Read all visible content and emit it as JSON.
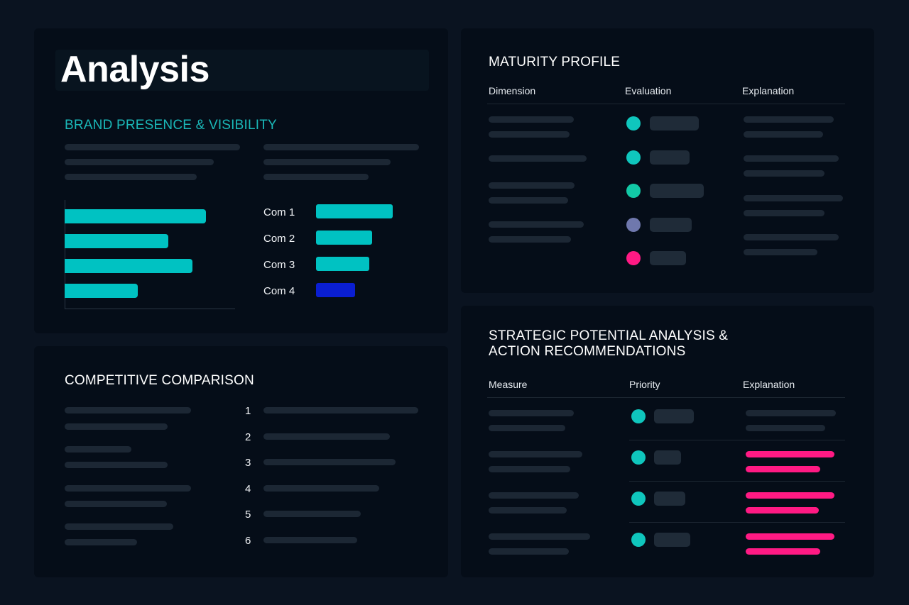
{
  "page": {
    "title": "Analysis"
  },
  "brand": {
    "heading": "BRAND PRESENCE & VISIBILITY",
    "bars": [
      {
        "value": 0.83,
        "color": "#00c2c2"
      },
      {
        "value": 0.61,
        "color": "#00c2c2"
      },
      {
        "value": 0.75,
        "color": "#00c2c2"
      },
      {
        "value": 0.43,
        "color": "#00c2c2"
      }
    ],
    "legend": [
      {
        "label": "Com 1",
        "value": 1.0,
        "color": "#00c2c2"
      },
      {
        "label": "Com 2",
        "value": 0.73,
        "color": "#00c2c2"
      },
      {
        "label": "Com 3",
        "value": 0.69,
        "color": "#00c2c2"
      },
      {
        "label": "Com 4",
        "value": 0.51,
        "color": "#0a1ed2"
      }
    ]
  },
  "competitive": {
    "heading": "COMPETITIVE COMPARISON",
    "ranks": [
      "1",
      "2",
      "3",
      "4",
      "5",
      "6"
    ]
  },
  "maturity": {
    "heading": "MATURITY PROFILE",
    "columns": {
      "dimension": "Dimension",
      "evaluation": "Evaluation",
      "explanation": "Explanation"
    },
    "rows": [
      {
        "status_color": "#0fc6bd"
      },
      {
        "status_color": "#0fc6bd"
      },
      {
        "status_color": "#12c9a6"
      },
      {
        "status_color": "#6f78ad"
      },
      {
        "status_color": "#ff1a84"
      }
    ]
  },
  "strategic": {
    "heading_line1": "STRATEGIC POTENTIAL ANALYSIS &",
    "heading_line2": "ACTION RECOMMENDATIONS",
    "columns": {
      "measure": "Measure",
      "priority": "Priority",
      "explanation": "Explanation"
    },
    "rows": [
      {
        "priority_color": "#0fc6bd",
        "highlight": false
      },
      {
        "priority_color": "#0fc6bd",
        "highlight": true
      },
      {
        "priority_color": "#0fc6bd",
        "highlight": true
      },
      {
        "priority_color": "#0fc6bd",
        "highlight": true
      }
    ],
    "highlight_color": "#ff1a84"
  },
  "colors": {
    "background": "#0a1320",
    "panel": "#050d18",
    "accent_teal": "#1ab8b8",
    "placeholder": "#1c2734"
  }
}
